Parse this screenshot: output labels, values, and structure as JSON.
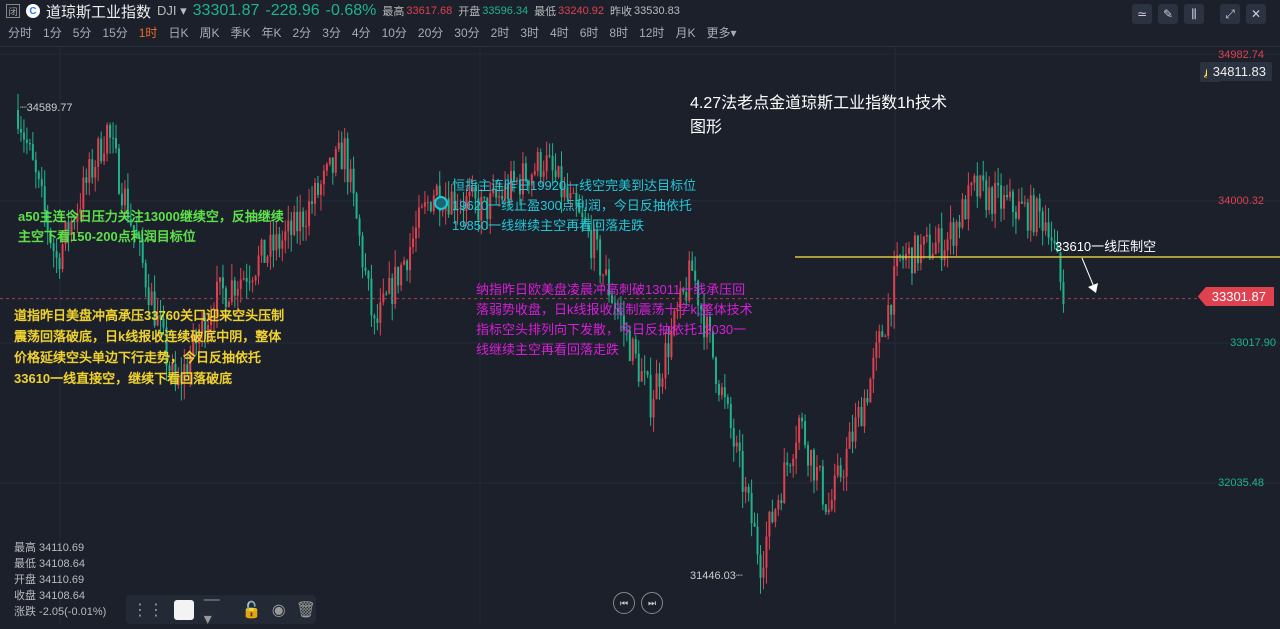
{
  "header": {
    "logo_box": "闭",
    "logo_letter": "C",
    "name": "道琼斯工业指数",
    "code": "DJI",
    "price": "33301.87",
    "change": "-228.96",
    "change_pct": "-0.68%",
    "high_label": "最高",
    "high": "33617.68",
    "open_label": "开盘",
    "open": "33596.34",
    "low_label": "最低",
    "low": "33240.92",
    "prev_label": "昨收",
    "prev": "33530.83"
  },
  "periods": [
    "分时",
    "1分",
    "5分",
    "15分",
    "1时",
    "日K",
    "周K",
    "季K",
    "年K",
    "2分",
    "3分",
    "4分",
    "10分",
    "20分",
    "30分",
    "2时",
    "3时",
    "4时",
    "6时",
    "8时",
    "12时",
    "月K",
    "更多▾"
  ],
  "active_period": "1时",
  "toolbar_icons": [
    "indicator-icon",
    "draw-icon",
    "candle-type-icon",
    "fullscreen-icon",
    "close-icon"
  ],
  "axis": {
    "top": "34982.74",
    "l1": "34000.32",
    "l2": "33017.90",
    "l3": "32035.48"
  },
  "alert_price": "34811.83",
  "last_price": "33301.87",
  "marks": {
    "high": "34589.77",
    "low": "31446.03"
  },
  "resistance_label": "33610一线压制空",
  "title": [
    "4.27法老点金道琼斯工业指数1h技术",
    "图形"
  ],
  "notes": {
    "a50": [
      "a50主连今日压力关注13000继续空，反抽继续",
      "主空下看150-200点利润目标位"
    ],
    "hsi": [
      "恒指主连昨日19920一线空完美到达目标位",
      "19620一线止盈300点利润，今日反抽依托",
      "19850一线继续主空再看回落走跌"
    ],
    "nasdaq": [
      "纳指昨日欧美盘凌晨冲高刺破13011一线承压回",
      "落弱势收盘，日k线报收压制震荡十字k,整体技术",
      "指标空头排列向下发散，今日反抽依托13030一",
      "线继续主空再看回落走跌"
    ],
    "dow": [
      "道指昨日美盘冲高承压33760关口迎来空头压制",
      "震荡回落破底，日k线报收连续破底中阴，整体",
      "价格延续空头单边下行走势，今日反抽依托",
      "33610一线直接空，继续下看回落破底"
    ]
  },
  "ohlc": [
    "最高 34110.69",
    "最低 34108.64",
    "开盘 34110.69",
    "收盘 34108.64",
    "涨跌 -2.05(-0.01%)"
  ],
  "colors": {
    "up": "#e0414f",
    "down": "#20b38a",
    "resistance": "#d9c53a",
    "a50": "#5ee04a",
    "hsi": "#20c8d8",
    "nasdaq": "#d81ed8",
    "dow": "#f0d22e"
  },
  "chart_data": {
    "type": "candlestick",
    "ylim": [
      32035.48,
      34982.74
    ],
    "anchors": [
      [
        0,
        34598
      ],
      [
        13,
        33568
      ],
      [
        30,
        34461
      ],
      [
        53,
        32675
      ],
      [
        66,
        33293
      ],
      [
        93,
        33774
      ],
      [
        110,
        34323
      ],
      [
        120,
        33087
      ],
      [
        140,
        34049
      ],
      [
        157,
        33911
      ],
      [
        177,
        34255
      ],
      [
        193,
        33705
      ],
      [
        213,
        32606
      ],
      [
        227,
        33499
      ],
      [
        240,
        32400
      ],
      [
        250,
        31507
      ],
      [
        263,
        32469
      ],
      [
        273,
        31851
      ],
      [
        287,
        32743
      ],
      [
        297,
        33568
      ],
      [
        313,
        33705
      ],
      [
        322,
        34049
      ],
      [
        333,
        33946
      ],
      [
        347,
        33842
      ],
      [
        352,
        33302
      ]
    ]
  }
}
